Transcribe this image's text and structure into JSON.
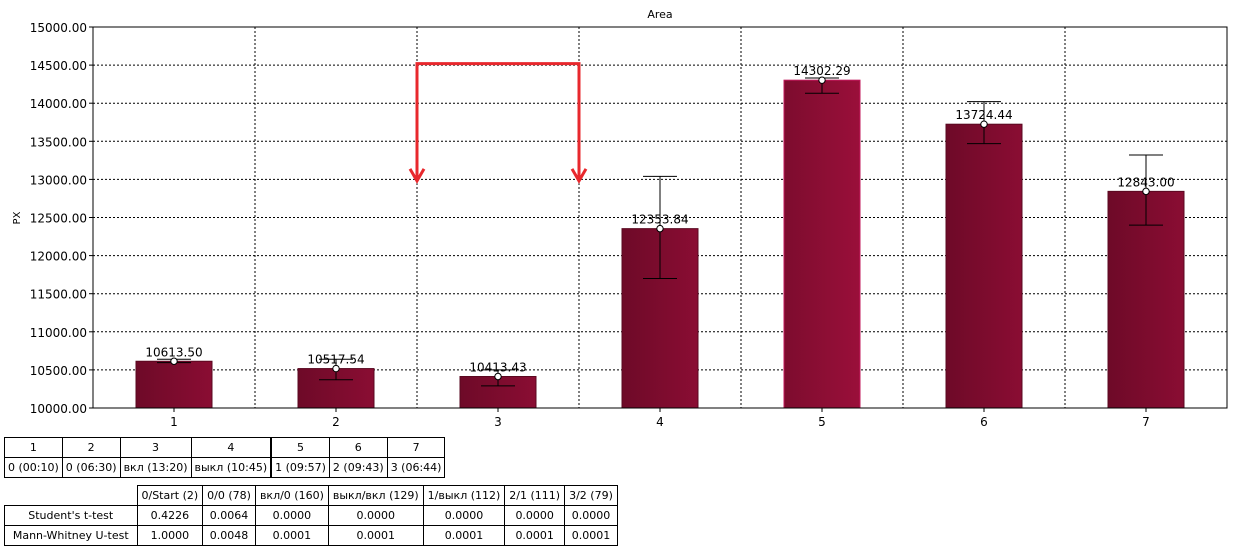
{
  "chart_data": {
    "type": "bar",
    "title": "Area",
    "xlabel": "",
    "ylabel": "PX",
    "ylim": [
      10000,
      15000
    ],
    "ytick_step": 500,
    "yticks": [
      "10000.00",
      "10500.00",
      "11000.00",
      "11500.00",
      "12000.00",
      "12500.00",
      "13000.00",
      "13500.00",
      "14000.00",
      "14500.00",
      "15000.00"
    ],
    "categories": [
      "1",
      "2",
      "3",
      "4",
      "5",
      "6",
      "7"
    ],
    "values": [
      10613.5,
      10517.54,
      10413.43,
      12353.84,
      14302.29,
      13724.44,
      12843.0
    ],
    "value_labels": [
      "10613.50",
      "10517.54",
      "10413.43",
      "12353.84",
      "14302.29",
      "13724.44",
      "12843.00"
    ],
    "error_low": [
      10595,
      10370,
      10290,
      11700,
      14130,
      13470,
      12400
    ],
    "error_high": [
      10640,
      10640,
      10500,
      13040,
      14330,
      14020,
      13320
    ],
    "grid": true,
    "bar_color": "#7d0d2e",
    "bar_color_highlight": "#8e0d35",
    "annotation_color": "#e8282d"
  },
  "legend_table": {
    "keys": [
      "1",
      "2",
      "3",
      "4",
      "5",
      "6",
      "7"
    ],
    "values": [
      "0 (00:10)",
      "0 (06:30)",
      "вкл (13:20)",
      "выкл (10:45)",
      "1 (09:57)",
      "2 (09:43)",
      "3 (06:44)"
    ]
  },
  "stats_table": {
    "headers": [
      "0/Start (2)",
      "0/0 (78)",
      "вкл/0 (160)",
      "выкл/вкл (129)",
      "1/выкл (112)",
      "2/1 (111)",
      "3/2 (79)"
    ],
    "rows": [
      {
        "label": "Student's t-test",
        "cells": [
          "0.4226",
          "0.0064",
          "0.0000",
          "0.0000",
          "0.0000",
          "0.0000",
          "0.0000"
        ]
      },
      {
        "label": "Mann-Whitney U-test",
        "cells": [
          "1.0000",
          "0.0048",
          "0.0001",
          "0.0001",
          "0.0001",
          "0.0001",
          "0.0001"
        ]
      }
    ]
  }
}
